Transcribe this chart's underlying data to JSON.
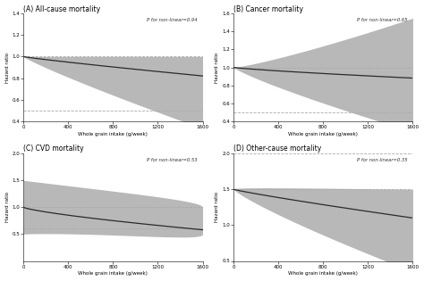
{
  "panels": [
    {
      "title": "(A) All-cause mortality",
      "p_text": "P for non-linear=0.94",
      "ylabel": "Hazard ratio",
      "xlabel": "Whole grain intake (g/week)",
      "xlim": [
        0,
        1600
      ],
      "ylim": [
        0.4,
        1.4
      ],
      "yticks": [
        0.4,
        0.6,
        0.8,
        1.0,
        1.2,
        1.4
      ],
      "xticks": [
        0,
        400,
        800,
        1200,
        1600
      ],
      "hlines": [
        1.0,
        0.5
      ]
    },
    {
      "title": "(B) Cancer mortality",
      "p_text": "P for non-linear=0.65",
      "ylabel": "Hazard ratio",
      "xlabel": "Whole grain intake (g/week)",
      "xlim": [
        0,
        1600
      ],
      "ylim": [
        0.4,
        1.6
      ],
      "yticks": [
        0.4,
        0.6,
        0.8,
        1.0,
        1.2,
        1.4,
        1.6
      ],
      "xticks": [
        0,
        400,
        800,
        1200,
        1600
      ],
      "hlines": [
        1.0,
        0.5
      ]
    },
    {
      "title": "(C) CVD mortality",
      "p_text": "P for non-linear=0.53",
      "ylabel": "Hazard ratio",
      "xlabel": "Whole grain intake (g/week)",
      "xlim": [
        0,
        1600
      ],
      "ylim": [
        0.0,
        2.0
      ],
      "yticks": [
        0.5,
        1.0,
        1.5,
        2.0
      ],
      "xticks": [
        0,
        400,
        800,
        1200,
        1600
      ],
      "hlines": [
        1.0,
        0.6
      ]
    },
    {
      "title": "(D) Other-cause mortality",
      "p_text": "P for non-linear=0.35",
      "ylabel": "Hazard ratio",
      "xlabel": "Whole grain intake (g/week)",
      "xlim": [
        0,
        1600
      ],
      "ylim": [
        0.5,
        2.0
      ],
      "yticks": [
        0.5,
        1.0,
        1.5,
        2.0
      ],
      "xticks": [
        0,
        400,
        800,
        1200,
        1600
      ],
      "hlines": [
        2.0,
        1.5
      ]
    }
  ],
  "line_color": "#2a2a2a",
  "ci_color": "#b8b8b8",
  "dashed_color": "#aaaaaa",
  "bg_color": "#ffffff"
}
